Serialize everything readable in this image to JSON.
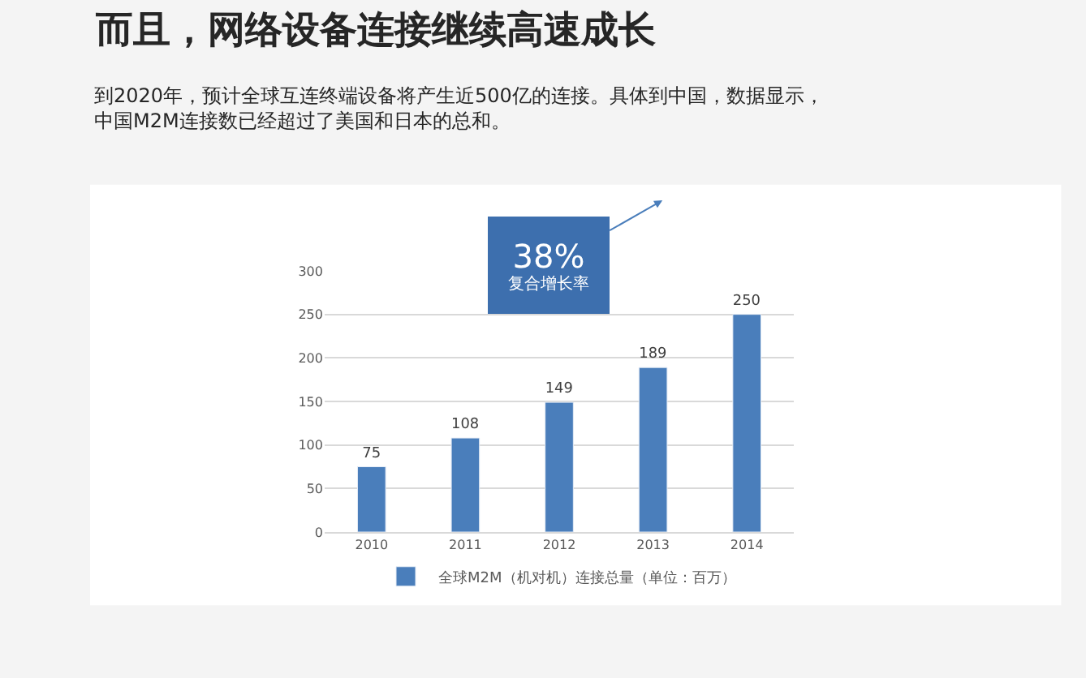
{
  "chart_data": {
    "type": "bar",
    "title": "而且，网络设备连接继续高速成长",
    "subtitle": "到2020年，预计全球互连终端设备将产生近500亿的连接。具体到中国，数据显示，中国M2M连接数已经超过了美国和日本的总和。",
    "categories": [
      "2010",
      "2011",
      "2012",
      "2013",
      "2014"
    ],
    "series": [
      {
        "name": "全球M2M（机对机）连接总量（单位：百万）",
        "color": "#4a7ebb",
        "values": [
          75,
          108,
          149,
          189,
          250
        ]
      }
    ],
    "ylim": [
      0,
      300
    ],
    "yticks": [
      0,
      50,
      100,
      150,
      200,
      250,
      300
    ],
    "grid": "y",
    "data_labels": true,
    "legend": "bottom",
    "annotations": [
      "38%\n复合增长率"
    ]
  }
}
